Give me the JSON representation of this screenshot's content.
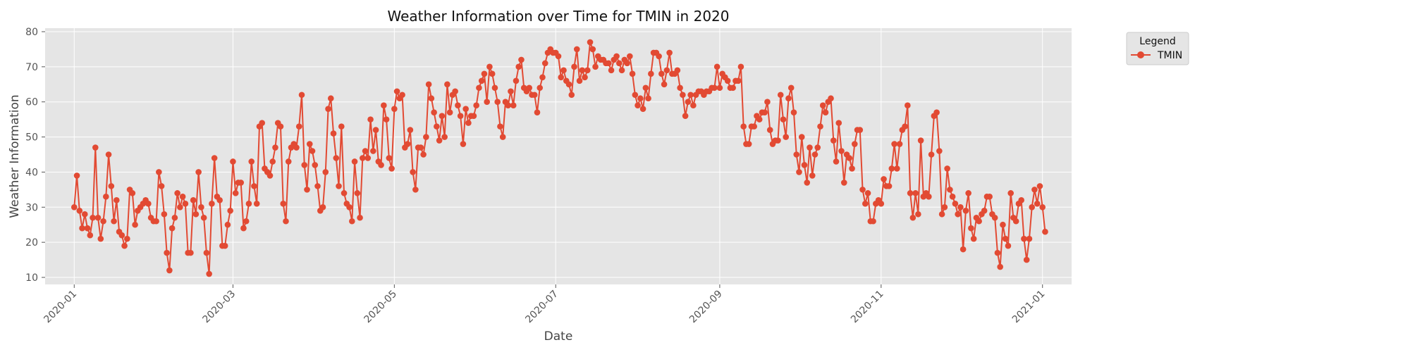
{
  "chart_data": {
    "type": "line",
    "title": "Weather Information over Time for TMIN in 2020",
    "xlabel": "Date",
    "ylabel": "Weather Information",
    "ylim": [
      8,
      81
    ],
    "xlim": [
      "2019-12-21",
      "2021-01-12"
    ],
    "yticks": [
      10,
      20,
      30,
      40,
      50,
      60,
      70,
      80
    ],
    "xticks": [
      "2020-01",
      "2020-03",
      "2020-05",
      "2020-07",
      "2020-09",
      "2020-11",
      "2021-01"
    ],
    "grid": true,
    "legend": {
      "title": "Legend",
      "placement": "outside-top-right"
    },
    "series": [
      {
        "name": "TMIN",
        "color": "#E24A33",
        "x_start": "2020-01-01",
        "x_step_days": 1,
        "values": [
          30,
          39,
          29,
          24,
          28,
          24,
          22,
          27,
          47,
          27,
          21,
          26,
          33,
          45,
          36,
          26,
          32,
          23,
          22,
          19,
          21,
          35,
          34,
          25,
          29,
          30,
          31,
          32,
          31,
          27,
          26,
          26,
          40,
          36,
          28,
          17,
          12,
          24,
          27,
          34,
          30,
          33,
          31,
          17,
          17,
          32,
          28,
          40,
          30,
          27,
          17,
          11,
          31,
          44,
          33,
          32,
          19,
          19,
          25,
          29,
          43,
          34,
          37,
          37,
          24,
          26,
          31,
          43,
          36,
          31,
          53,
          54,
          41,
          40,
          39,
          43,
          47,
          54,
          53,
          31,
          26,
          43,
          47,
          48,
          47,
          53,
          62,
          42,
          35,
          48,
          46,
          42,
          36,
          29,
          30,
          40,
          58,
          61,
          51,
          44,
          36,
          53,
          34,
          31,
          30,
          26,
          43,
          34,
          27,
          44,
          46,
          44,
          55,
          46,
          52,
          43,
          42,
          59,
          55,
          44,
          41,
          58,
          63,
          61,
          62,
          47,
          48,
          52,
          40,
          35,
          47,
          47,
          45,
          50,
          65,
          61,
          57,
          53,
          49,
          56,
          50,
          65,
          57,
          62,
          63,
          59,
          56,
          48,
          58,
          54,
          56,
          56,
          59,
          64,
          66,
          68,
          60,
          70,
          68,
          64,
          60,
          53,
          50,
          60,
          59,
          63,
          59,
          66,
          70,
          72,
          64,
          63,
          64,
          62,
          62,
          57,
          64,
          67,
          71,
          74,
          75,
          74,
          74,
          73,
          67,
          69,
          66,
          65,
          62,
          70,
          75,
          66,
          69,
          67,
          69,
          77,
          75,
          70,
          73,
          72,
          72,
          71,
          71,
          69,
          72,
          73,
          71,
          69,
          72,
          71,
          73,
          68,
          62,
          59,
          61,
          58,
          64,
          61,
          68,
          74,
          74,
          73,
          68,
          65,
          69,
          74,
          68,
          68,
          69,
          64,
          62,
          56,
          60,
          62,
          59,
          62,
          63,
          63,
          62,
          63,
          63,
          64,
          64,
          70,
          64,
          68,
          67,
          66,
          64,
          64,
          66,
          66,
          70,
          53,
          48,
          48,
          53,
          53,
          56,
          55,
          57,
          57,
          60,
          52,
          48,
          49,
          49,
          62,
          55,
          50,
          61,
          64,
          57,
          45,
          40,
          50,
          42,
          37,
          47,
          39,
          45,
          47,
          53,
          59,
          57,
          60,
          61,
          49,
          43,
          54,
          46,
          37,
          45,
          44,
          41,
          48,
          52,
          52,
          35,
          31,
          34,
          26,
          26,
          31,
          32,
          31,
          38,
          36,
          36,
          41,
          48,
          41,
          48,
          52,
          53,
          59,
          34,
          27,
          34,
          28,
          49,
          33,
          34,
          33,
          45,
          56,
          57,
          46,
          28,
          30,
          41,
          35,
          33,
          31,
          28,
          30,
          18,
          29,
          34,
          24,
          21,
          27,
          26,
          28,
          29,
          33,
          33,
          28,
          27,
          17,
          13,
          25,
          21,
          19,
          34,
          27,
          26,
          31,
          32,
          21,
          15,
          21,
          30,
          35,
          31,
          36,
          30,
          23
        ]
      }
    ]
  }
}
